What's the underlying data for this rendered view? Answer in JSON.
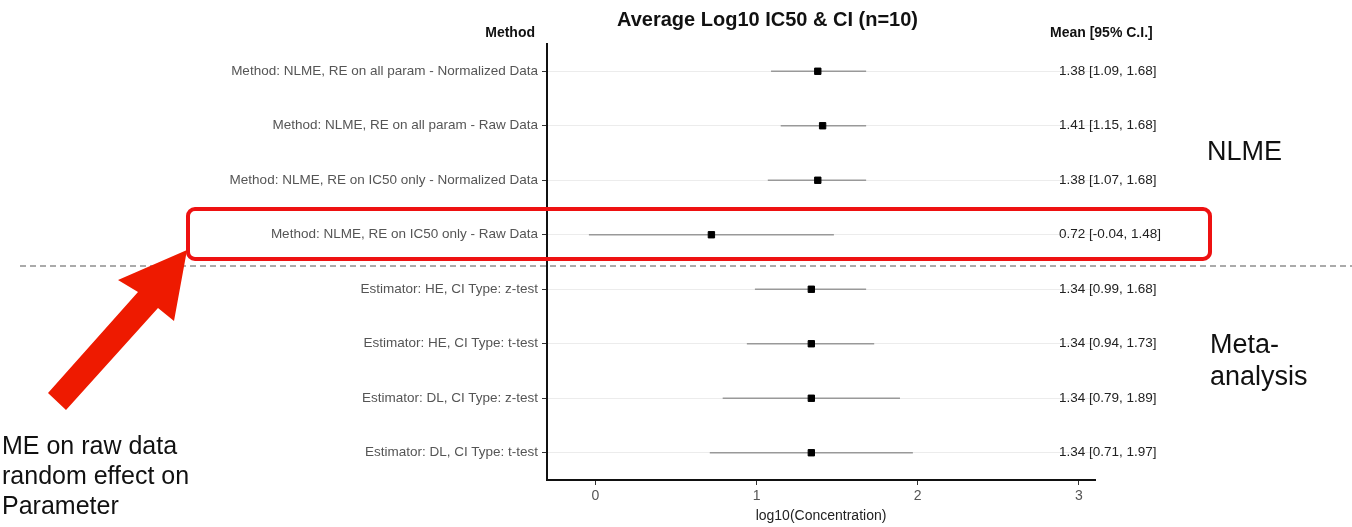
{
  "chart_data": {
    "type": "scatter",
    "orientation": "horizontal",
    "title": "Average Log10 IC50 & CI (n=10)",
    "xlabel": "log10(Concentration)",
    "categories": [
      "Method: NLME, RE on all param - Normalized Data",
      "Method: NLME, RE on all param - Raw Data",
      "Method: NLME, RE on IC50 only - Normalized Data",
      "Method: NLME, RE on IC50 only - Raw Data",
      "Estimator: HE, CI Type: z-test",
      "Estimator: HE, CI Type: t-test",
      "Estimator: DL, CI Type: z-test",
      "Estimator: DL, CI Type: t-test"
    ],
    "values": [
      1.38,
      1.41,
      1.38,
      0.72,
      1.34,
      1.34,
      1.34,
      1.34
    ],
    "errors": [
      [
        1.09,
        1.68
      ],
      [
        1.15,
        1.68
      ],
      [
        1.07,
        1.68
      ],
      [
        -0.04,
        1.48
      ],
      [
        0.99,
        1.68
      ],
      [
        0.94,
        1.73
      ],
      [
        0.79,
        1.89
      ],
      [
        0.71,
        1.97
      ]
    ],
    "value_labels": [
      "1.38 [1.09, 1.68]",
      "1.41 [1.15, 1.68]",
      "1.38 [1.07, 1.68]",
      "0.72 [-0.04, 1.48]",
      "1.34 [0.99, 1.68]",
      "1.34 [0.94, 1.73]",
      "1.34 [0.79, 1.89]",
      "1.34 [0.71, 1.97]"
    ],
    "color": "#000000",
    "xlim": [
      -0.3,
      3.1
    ],
    "xticks": [
      0,
      1,
      2,
      3
    ],
    "grid": "y",
    "marker": "square",
    "legend": false,
    "annotations": [
      "Method",
      "Mean [95% C.I.]",
      "NLME",
      "Meta-analysis",
      "ME on raw data\nrandom effect on\nParameter"
    ]
  }
}
